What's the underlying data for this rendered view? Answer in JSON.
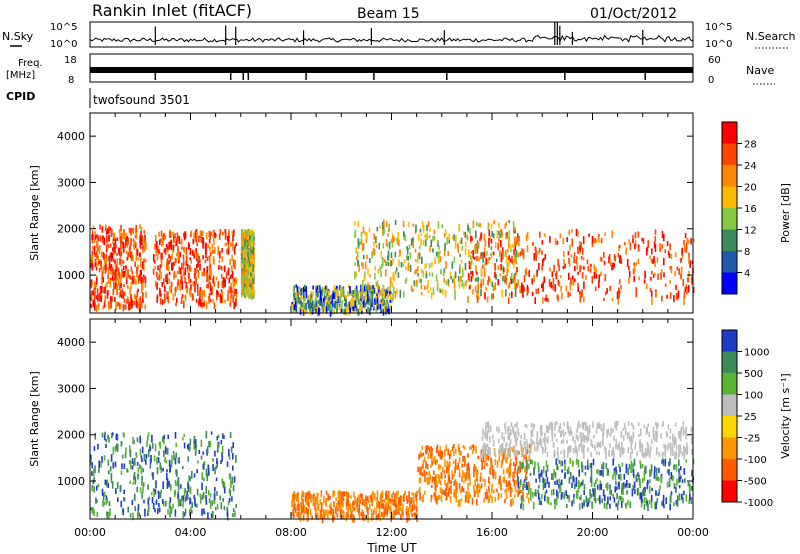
{
  "header": {
    "title": "Rankin Inlet (fitACF)",
    "beam": "Beam 15",
    "date": "01/Oct/2012"
  },
  "top_panels": {
    "nsky_label": "N.Sky",
    "nsky_ticks": [
      "10^5",
      "10^0"
    ],
    "nsearch_label": "N.Search",
    "nsearch_ticks": [
      "10^5",
      "10^0"
    ],
    "freq_label_1": "Freq.",
    "freq_label_2": "[MHz]",
    "freq_ticks": [
      "18",
      "8"
    ],
    "nave_label": "Nave",
    "nave_ticks": [
      "60",
      "0"
    ],
    "cpid_label": "CPID",
    "cpid_value": "twofsound 3501"
  },
  "chart_data": [
    {
      "type": "heatmap",
      "name": "power-panel",
      "xlabel": "",
      "ylabel": "Slant Range [km]",
      "xlim_hours": [
        0,
        24
      ],
      "ylim": [
        180,
        4500
      ],
      "yticks": [
        "1000",
        "2000",
        "3000",
        "4000"
      ],
      "colorbar": {
        "label": "Power [dB]",
        "ticks": [
          "28",
          "24",
          "20",
          "16",
          "12",
          "8",
          "4"
        ],
        "colors": [
          "#ff0000",
          "#ff4400",
          "#ff8800",
          "#ffbb00",
          "#88c840",
          "#3c8c5a",
          "#1e5aaa",
          "#0000ff"
        ]
      },
      "scatter_regions": [
        {
          "x": [
            0.0,
            2.2
          ],
          "y": [
            350,
            2100
          ],
          "value": "high"
        },
        {
          "x": [
            2.5,
            5.8
          ],
          "y": [
            400,
            2000
          ],
          "value": "high"
        },
        {
          "x": [
            6.0,
            6.5
          ],
          "y": [
            600,
            2000
          ],
          "value": "medium"
        },
        {
          "x": [
            8.0,
            12.0
          ],
          "y": [
            250,
            800
          ],
          "value": "low"
        },
        {
          "x": [
            10.5,
            17.0
          ],
          "y": [
            600,
            2200
          ],
          "value": "medium"
        },
        {
          "x": [
            15.0,
            24.0
          ],
          "y": [
            500,
            2000
          ],
          "value": "high"
        }
      ]
    },
    {
      "type": "heatmap",
      "name": "velocity-panel",
      "xlabel": "Time UT",
      "ylabel": "Slant Range [km]",
      "xlim_hours": [
        0,
        24
      ],
      "ylim": [
        180,
        4500
      ],
      "yticks": [
        "1000",
        "2000",
        "3000",
        "4000"
      ],
      "xticks": [
        "00:00",
        "04:00",
        "08:00",
        "12:00",
        "16:00",
        "20:00",
        "00:00"
      ],
      "colorbar": {
        "label": "Velocity [m s⁻¹]",
        "ticks": [
          "1000",
          "500",
          "100",
          "25",
          "-25",
          "-100",
          "-500",
          "-1000"
        ],
        "colors": [
          "#1e3cc8",
          "#3c8c5a",
          "#5ab432",
          "#bebebe",
          "#ffd700",
          "#ff9600",
          "#ff5a00",
          "#ff0000"
        ]
      },
      "scatter_regions": [
        {
          "x": [
            0.0,
            5.8
          ],
          "y": [
            300,
            2100
          ],
          "value": "positive"
        },
        {
          "x": [
            8.0,
            13.0
          ],
          "y": [
            250,
            800
          ],
          "value": "negative"
        },
        {
          "x": [
            13.0,
            17.5
          ],
          "y": [
            600,
            1800
          ],
          "value": "negative"
        },
        {
          "x": [
            15.5,
            24.0
          ],
          "y": [
            1600,
            2300
          ],
          "value": "near-zero"
        },
        {
          "x": [
            17.0,
            24.0
          ],
          "y": [
            500,
            1500
          ],
          "value": "positive"
        }
      ]
    }
  ]
}
